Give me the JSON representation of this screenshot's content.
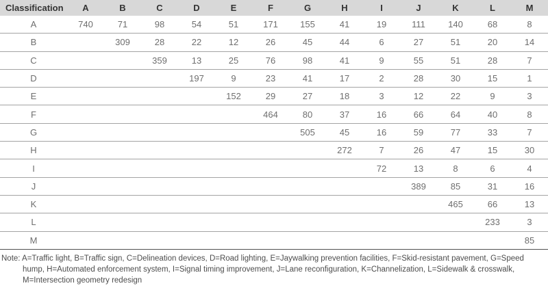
{
  "chart_data": {
    "type": "table",
    "columns": [
      "Classification",
      "A",
      "B",
      "C",
      "D",
      "E",
      "F",
      "G",
      "H",
      "I",
      "J",
      "K",
      "L",
      "M"
    ],
    "rows": [
      {
        "label": "A",
        "values": [
          740,
          71,
          98,
          54,
          51,
          171,
          155,
          41,
          19,
          111,
          140,
          68,
          8
        ]
      },
      {
        "label": "B",
        "values": [
          null,
          309,
          28,
          22,
          12,
          26,
          45,
          44,
          6,
          27,
          51,
          20,
          14
        ]
      },
      {
        "label": "C",
        "values": [
          null,
          null,
          359,
          13,
          25,
          76,
          98,
          41,
          9,
          55,
          51,
          28,
          7
        ]
      },
      {
        "label": "D",
        "values": [
          null,
          null,
          null,
          197,
          9,
          23,
          41,
          17,
          2,
          28,
          30,
          15,
          1
        ]
      },
      {
        "label": "E",
        "values": [
          null,
          null,
          null,
          null,
          152,
          29,
          27,
          18,
          3,
          12,
          22,
          9,
          3
        ]
      },
      {
        "label": "F",
        "values": [
          null,
          null,
          null,
          null,
          null,
          464,
          80,
          37,
          16,
          66,
          64,
          40,
          8
        ]
      },
      {
        "label": "G",
        "values": [
          null,
          null,
          null,
          null,
          null,
          null,
          505,
          45,
          16,
          59,
          77,
          33,
          7
        ]
      },
      {
        "label": "H",
        "values": [
          null,
          null,
          null,
          null,
          null,
          null,
          null,
          272,
          7,
          26,
          47,
          15,
          30
        ]
      },
      {
        "label": "I",
        "values": [
          null,
          null,
          null,
          null,
          null,
          null,
          null,
          null,
          72,
          13,
          8,
          6,
          4
        ]
      },
      {
        "label": "J",
        "values": [
          null,
          null,
          null,
          null,
          null,
          null,
          null,
          null,
          null,
          389,
          85,
          31,
          16
        ]
      },
      {
        "label": "K",
        "values": [
          null,
          null,
          null,
          null,
          null,
          null,
          null,
          null,
          null,
          null,
          465,
          66,
          13
        ]
      },
      {
        "label": "L",
        "values": [
          null,
          null,
          null,
          null,
          null,
          null,
          null,
          null,
          null,
          null,
          null,
          233,
          3
        ]
      },
      {
        "label": "M",
        "values": [
          null,
          null,
          null,
          null,
          null,
          null,
          null,
          null,
          null,
          null,
          null,
          null,
          85
        ]
      }
    ]
  },
  "note": {
    "text": "Note: A=Traffic light, B=Traffic sign, C=Delineation devices, D=Road lighting, E=Jaywalking prevention facilities, F=Skid-resistant pavement, G=Speed hump, H=Automated enforcement system, I=Signal timing improvement, J=Lane reconfiguration, K=Channelization, L=Sidewalk & crosswalk, M=Intersection geometry redesign"
  },
  "colors": {
    "header_bg": "#d8d8d8",
    "header_text": "#333333",
    "cell_text": "#6e6e6e",
    "row_divider": "#a3a3a3",
    "bottom_rule": "#515151",
    "note_text": "#4c4c4c"
  }
}
